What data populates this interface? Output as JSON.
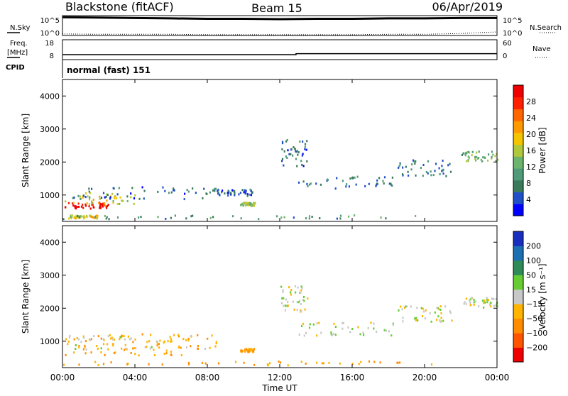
{
  "header": {
    "station": "Blackstone (fitACF)",
    "beam": "Beam 15",
    "date": "06/Apr/2019"
  },
  "top_panels": {
    "noise": {
      "left_label": "N.Sky",
      "right_label": "N.Search",
      "left_ticks": [
        "10^5",
        "10^0"
      ],
      "right_ticks": [
        "10^5",
        "10^0"
      ]
    },
    "freq": {
      "left_label_1": "Freq.",
      "left_label_2": "[MHz]",
      "right_label": "Nave",
      "left_ticks": [
        "18",
        "8"
      ],
      "right_ticks": [
        "60",
        "0"
      ]
    },
    "cpid": {
      "label": "CPID",
      "value": "normal (fast) 151"
    }
  },
  "chart_data": [
    {
      "type": "line",
      "panel": "noise",
      "series": [
        {
          "name": "N.Sky",
          "x_hours": [
            0,
            2,
            4,
            6,
            8,
            10,
            12,
            14,
            16,
            18,
            20,
            22,
            24
          ],
          "values_log10": [
            4.6,
            4.5,
            4.4,
            4.3,
            4.2,
            4.2,
            4.1,
            4.2,
            4.2,
            4.3,
            4.3,
            4.4,
            4.4
          ]
        },
        {
          "name": "N.Search",
          "x_hours": [
            0,
            2,
            4,
            6,
            8,
            10,
            12,
            14,
            16,
            18,
            20,
            22,
            24
          ],
          "values_log10": [
            0.4,
            0.3,
            0.3,
            0.3,
            0.2,
            0.2,
            0.2,
            0.2,
            0.2,
            0.3,
            0.3,
            0.5,
            0.9
          ]
        }
      ],
      "ylim_log10": [
        0,
        5
      ]
    },
    {
      "type": "line",
      "panel": "freq-nave",
      "series": [
        {
          "name": "Freq.",
          "x_hours": [
            0,
            12.9,
            12.9,
            24
          ],
          "values": [
            10.5,
            10.5,
            11,
            11
          ]
        }
      ],
      "ylim": [
        8,
        18
      ]
    },
    {
      "type": "heatmap",
      "panel": "power",
      "xlabel": "",
      "ylabel": "Slant Range [km]",
      "xlim_hours": [
        0,
        24
      ],
      "ylim_km": [
        200,
        4500
      ],
      "yticks": [
        "4000",
        "3000",
        "2000",
        "1000"
      ],
      "colorbar": {
        "label": "Power [dB]",
        "ticks": [
          "28",
          "24",
          "20",
          "16",
          "12",
          "8",
          "4"
        ],
        "colors": [
          "#0000ff",
          "#2050c8",
          "#3a7a5a",
          "#4f9a78",
          "#6cb36c",
          "#b0c83c",
          "#f5c400",
          "#ff9900",
          "#ff6600",
          "#ff2000",
          "#ee0000"
        ]
      },
      "regions": [
        {
          "t": [
            0.1,
            2.5
          ],
          "r": [
            600,
            800
          ],
          "level": 28
        },
        {
          "t": [
            0.1,
            4.0
          ],
          "r": [
            750,
            1100
          ],
          "level": 16
        },
        {
          "t": [
            0.5,
            8.5
          ],
          "r": [
            900,
            1300
          ],
          "level": 6
        },
        {
          "t": [
            8.5,
            10.5
          ],
          "r": [
            1000,
            1200
          ],
          "level": 5
        },
        {
          "t": [
            9.8,
            10.6
          ],
          "r": [
            700,
            800
          ],
          "level": 13
        },
        {
          "t": [
            0.3,
            2.0
          ],
          "r": [
            320,
            420
          ],
          "level": 18
        },
        {
          "t": [
            0.0,
            20.8
          ],
          "r": [
            300,
            420
          ],
          "level": 9
        },
        {
          "t": [
            12.0,
            13.5
          ],
          "r": [
            1900,
            2700
          ],
          "level": 6
        },
        {
          "t": [
            13.0,
            18.5
          ],
          "r": [
            1200,
            1600
          ],
          "level": 7
        },
        {
          "t": [
            18.5,
            21.5
          ],
          "r": [
            1600,
            2100
          ],
          "level": 7
        },
        {
          "t": [
            22.0,
            24.0
          ],
          "r": [
            2050,
            2350
          ],
          "level": 12
        }
      ]
    },
    {
      "type": "heatmap",
      "panel": "velocity",
      "xlabel": "Time UT",
      "ylabel": "Slant Range [km]",
      "xticks": [
        "00:00",
        "04:00",
        "08:00",
        "12:00",
        "16:00",
        "20:00",
        "00:00"
      ],
      "xlim_hours": [
        0,
        24
      ],
      "ylim_km": [
        200,
        4500
      ],
      "yticks": [
        "4000",
        "3000",
        "2000",
        "1000"
      ],
      "colorbar": {
        "label": "Velocity [m s⁻¹]",
        "ticks": [
          "200",
          "100",
          "50",
          "15",
          "−15",
          "−50",
          "−100",
          "−200"
        ],
        "colors": [
          "#ee0000",
          "#ff5500",
          "#ff8c00",
          "#ffb400",
          "#c8c8c8",
          "#66cc33",
          "#2e8b57",
          "#1c6fb0",
          "#1a2ebd"
        ]
      },
      "regions": [
        {
          "t": [
            0.1,
            8.5
          ],
          "r": [
            600,
            1250
          ],
          "level": -40
        },
        {
          "t": [
            0.1,
            5.5
          ],
          "r": [
            800,
            1200
          ],
          "level": -5
        },
        {
          "t": [
            9.8,
            10.6
          ],
          "r": [
            700,
            800
          ],
          "level": -60
        },
        {
          "t": [
            0.0,
            20.8
          ],
          "r": [
            300,
            420
          ],
          "level": -45
        },
        {
          "t": [
            12.0,
            13.5
          ],
          "r": [
            1900,
            2700
          ],
          "level": 0
        },
        {
          "t": [
            13.0,
            18.5
          ],
          "r": [
            1200,
            1600
          ],
          "level": 5
        },
        {
          "t": [
            18.5,
            21.5
          ],
          "r": [
            1600,
            2100
          ],
          "level": 0
        },
        {
          "t": [
            22.0,
            24.0
          ],
          "r": [
            2050,
            2350
          ],
          "level": 0
        }
      ]
    }
  ]
}
